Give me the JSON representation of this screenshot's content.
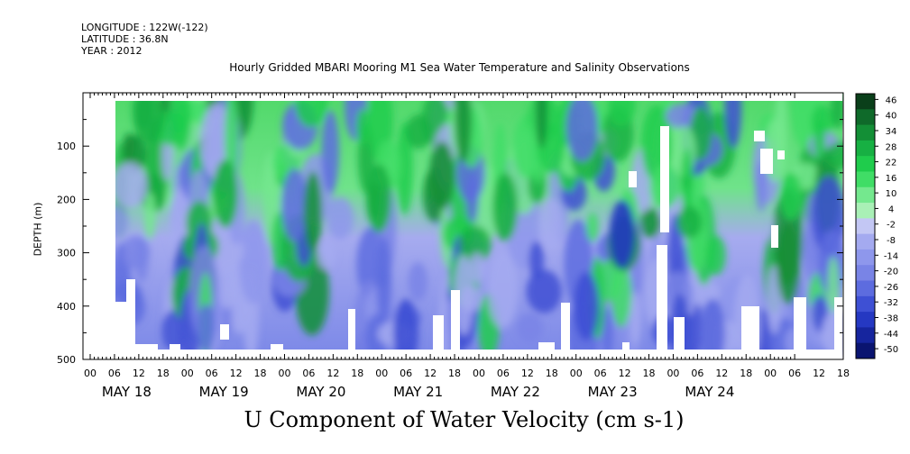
{
  "header": {
    "longitude": "LONGITUDE : 122W(-122)",
    "latitude": "LATITUDE : 36.8N",
    "year": "YEAR : 2012"
  },
  "chart_data": {
    "type": "heatmap",
    "title": "Hourly Gridded MBARI Mooring M1 Sea Water Temperature and Salinity Observations",
    "bottom_title": "U Component of Water Velocity (cm s-1)",
    "ylabel": "DEPTH (m)",
    "ylim": [
      500,
      0
    ],
    "y_ticks": [
      100,
      200,
      300,
      400,
      500
    ],
    "x_hour_ticks": [
      "00",
      "06",
      "12",
      "18",
      "00",
      "06",
      "12",
      "18",
      "00",
      "06",
      "12",
      "18",
      "00",
      "06",
      "12",
      "18",
      "00",
      "06",
      "12",
      "18",
      "00",
      "06",
      "12",
      "18",
      "00",
      "06",
      "12",
      "18",
      "00",
      "06",
      "12",
      "18"
    ],
    "days": [
      "MAY 18",
      "MAY 19",
      "MAY 20",
      "MAY 21",
      "MAY 22",
      "MAY 23",
      "MAY 24"
    ],
    "colorbar": {
      "labels": [
        "46",
        "40",
        "34",
        "28",
        "22",
        "16",
        "10",
        "4",
        "-2",
        "-8",
        "-14",
        "-20",
        "-26",
        "-32",
        "-38",
        "-44",
        "-50"
      ],
      "colors": [
        "#0a3f1a",
        "#0f6a2a",
        "#138f36",
        "#17b043",
        "#1fcc4c",
        "#40dd66",
        "#74e88e",
        "#a9f0b6",
        "#c3c7f4",
        "#a4aaf0",
        "#8e97ec",
        "#7984e6",
        "#5d6cdf",
        "#3e50d4",
        "#2538c2",
        "#16259e",
        "#0a1470"
      ],
      "range": [
        -50,
        52
      ]
    },
    "grid": false
  }
}
